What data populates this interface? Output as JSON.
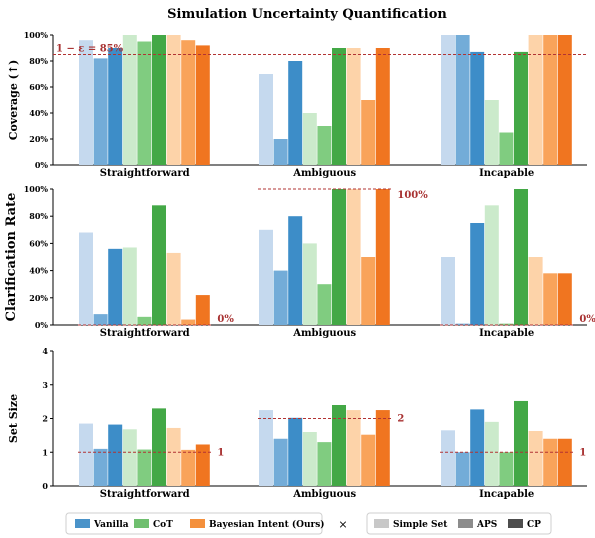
{
  "figure": {
    "title": "Simulation Uncertainty Quantification"
  },
  "chart_data": [
    {
      "type": "bar",
      "ylabel": "Coverage (↑)",
      "ylim": [
        0,
        100
      ],
      "yticks": [
        "0%",
        "20%",
        "40%",
        "60%",
        "80%",
        "100%"
      ],
      "ytick_values": [
        0,
        20,
        40,
        60,
        80,
        100
      ],
      "categories": [
        "Straightforward",
        "Ambiguous",
        "Incapable"
      ],
      "series": [
        {
          "method": "Vanilla",
          "set": "Simple Set",
          "values": [
            96,
            70,
            100
          ]
        },
        {
          "method": "Vanilla",
          "set": "APS",
          "values": [
            82,
            20,
            100
          ]
        },
        {
          "method": "Vanilla",
          "set": "CP",
          "values": [
            90,
            80,
            87
          ]
        },
        {
          "method": "CoT",
          "set": "Simple Set",
          "values": [
            100,
            40,
            50
          ]
        },
        {
          "method": "CoT",
          "set": "APS",
          "values": [
            95,
            30,
            25
          ]
        },
        {
          "method": "CoT",
          "set": "CP",
          "values": [
            100,
            90,
            87
          ]
        },
        {
          "method": "Bayesian Intent (Ours)",
          "set": "Simple Set",
          "values": [
            100,
            90,
            100
          ]
        },
        {
          "method": "Bayesian Intent (Ours)",
          "set": "APS",
          "values": [
            96,
            50,
            100
          ]
        },
        {
          "method": "Bayesian Intent (Ours)",
          "set": "CP",
          "values": [
            92,
            90,
            100
          ]
        }
      ],
      "reference_lines": [
        {
          "label": "1 − ε = 85%",
          "value": 85,
          "span": "all"
        }
      ]
    },
    {
      "type": "bar",
      "ylabel": "Clarification Rate",
      "ylim": [
        0,
        100
      ],
      "yticks": [
        "0%",
        "20%",
        "40%",
        "60%",
        "80%",
        "100%"
      ],
      "ytick_values": [
        0,
        20,
        40,
        60,
        80,
        100
      ],
      "categories": [
        "Straightforward",
        "Ambiguous",
        "Incapable"
      ],
      "series": [
        {
          "method": "Vanilla",
          "set": "Simple Set",
          "values": [
            68,
            70,
            50
          ]
        },
        {
          "method": "Vanilla",
          "set": "APS",
          "values": [
            8,
            40,
            1
          ]
        },
        {
          "method": "Vanilla",
          "set": "CP",
          "values": [
            56,
            80,
            75
          ]
        },
        {
          "method": "CoT",
          "set": "Simple Set",
          "values": [
            57,
            60,
            88
          ]
        },
        {
          "method": "CoT",
          "set": "APS",
          "values": [
            6,
            30,
            1
          ]
        },
        {
          "method": "CoT",
          "set": "CP",
          "values": [
            88,
            100,
            100
          ]
        },
        {
          "method": "Bayesian Intent (Ours)",
          "set": "Simple Set",
          "values": [
            53,
            100,
            50
          ]
        },
        {
          "method": "Bayesian Intent (Ours)",
          "set": "APS",
          "values": [
            4,
            50,
            38
          ]
        },
        {
          "method": "Bayesian Intent (Ours)",
          "set": "CP",
          "values": [
            22,
            100,
            38
          ]
        }
      ],
      "reference_lines": [
        {
          "label": "0%",
          "value": 0,
          "category": "Straightforward"
        },
        {
          "label": "100%",
          "value": 100,
          "category": "Ambiguous"
        },
        {
          "label": "0%",
          "value": 0,
          "category": "Incapable"
        }
      ]
    },
    {
      "type": "bar",
      "ylabel": "Set Size",
      "ylim": [
        0,
        4
      ],
      "yticks": [
        "0",
        "1",
        "2",
        "3",
        "4"
      ],
      "ytick_values": [
        0,
        1,
        2,
        3,
        4
      ],
      "categories": [
        "Straightforward",
        "Ambiguous",
        "Incapable"
      ],
      "series": [
        {
          "method": "Vanilla",
          "set": "Simple Set",
          "values": [
            1.85,
            2.25,
            1.65
          ]
        },
        {
          "method": "Vanilla",
          "set": "APS",
          "values": [
            1.1,
            1.4,
            1.0
          ]
        },
        {
          "method": "Vanilla",
          "set": "CP",
          "values": [
            1.82,
            2.02,
            2.27
          ]
        },
        {
          "method": "CoT",
          "set": "Simple Set",
          "values": [
            1.68,
            1.6,
            1.9
          ]
        },
        {
          "method": "CoT",
          "set": "APS",
          "values": [
            1.08,
            1.3,
            1.0
          ]
        },
        {
          "method": "CoT",
          "set": "CP",
          "values": [
            2.3,
            2.4,
            2.52
          ]
        },
        {
          "method": "Bayesian Intent (Ours)",
          "set": "Simple Set",
          "values": [
            1.72,
            2.25,
            1.63
          ]
        },
        {
          "method": "Bayesian Intent (Ours)",
          "set": "APS",
          "values": [
            1.07,
            1.52,
            1.4
          ]
        },
        {
          "method": "Bayesian Intent (Ours)",
          "set": "CP",
          "values": [
            1.23,
            2.25,
            1.4
          ]
        }
      ],
      "reference_lines": [
        {
          "label": "1",
          "value": 1,
          "category": "Straightforward"
        },
        {
          "label": "2",
          "value": 2,
          "category": "Ambiguous"
        },
        {
          "label": "1",
          "value": 1,
          "category": "Incapable"
        }
      ]
    }
  ],
  "legend": {
    "methods": [
      {
        "name": "Vanilla",
        "color": "#4a93c9"
      },
      {
        "name": "CoT",
        "color": "#6fbf6f"
      },
      {
        "name": "Bayesian Intent (Ours)",
        "color": "#f4903c"
      }
    ],
    "times": "×",
    "sets": [
      {
        "name": "Simple Set",
        "color": "#c8c8c8"
      },
      {
        "name": "APS",
        "color": "#8c8c8c"
      },
      {
        "name": "CP",
        "color": "#4d4d4d"
      }
    ]
  },
  "colors": {
    "Vanilla": [
      "#c5d9ee",
      "#73acd8",
      "#3d8dc8"
    ],
    "CoT": [
      "#cbeacb",
      "#80cc80",
      "#43a846"
    ],
    "Bayesian Intent (Ours)": [
      "#fdd3a9",
      "#f9a35a",
      "#f07520"
    ],
    "reference": "#b23333",
    "reference_text": "#a83232"
  }
}
